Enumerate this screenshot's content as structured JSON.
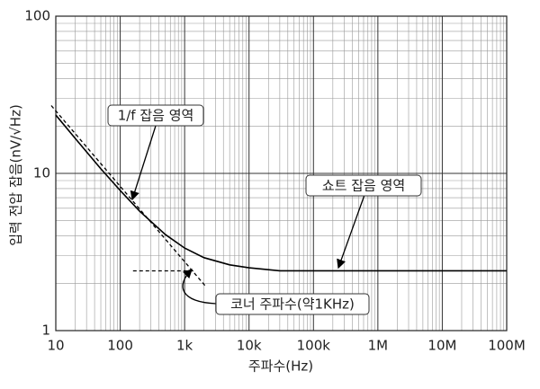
{
  "chart_data": {
    "type": "line",
    "xlabel": "주파수(Hz)",
    "ylabel": "입력 전압 잡음(nV/√Hz)",
    "xscale": "log",
    "yscale": "log",
    "grid": true,
    "minor_grid": true,
    "xlim": [
      10,
      100000000
    ],
    "ylim": [
      1,
      100
    ],
    "xticks": [
      10,
      100,
      {
        "value": 1000,
        "label": "1k"
      },
      {
        "value": 10000,
        "label": "10k"
      },
      {
        "value": 100000,
        "label": "100k"
      },
      {
        "value": 1000000,
        "label": "1M"
      },
      {
        "value": 10000000,
        "label": "10M"
      },
      {
        "value": 100000000,
        "label": "100M"
      }
    ],
    "yticks": [
      1,
      10,
      100
    ],
    "series": [
      {
        "color": "#000000",
        "style": "solid",
        "x": [
          10,
          20,
          50,
          100,
          200,
          500,
          1000,
          2000,
          5000,
          10000,
          30000,
          100000000
        ],
        "values": [
          23.5,
          16.7,
          10.7,
          7.78,
          5.75,
          4.09,
          3.35,
          2.91,
          2.62,
          2.51,
          2.4,
          2.4
        ]
      },
      {
        "color": "#000000",
        "style": "dashed",
        "x": [
          8.5,
          2080
        ],
        "values": [
          27,
          1.93
        ]
      },
      {
        "color": "#000000",
        "style": "dashed",
        "x": [
          158,
          1370
        ],
        "values": [
          2.4,
          2.4
        ]
      }
    ],
    "annotations": [
      {
        "text": "1/f 잡음 영역"
      },
      {
        "text": "쇼트 잡음 영역"
      },
      {
        "text": "코너 주파수(약1KHz)"
      }
    ]
  }
}
